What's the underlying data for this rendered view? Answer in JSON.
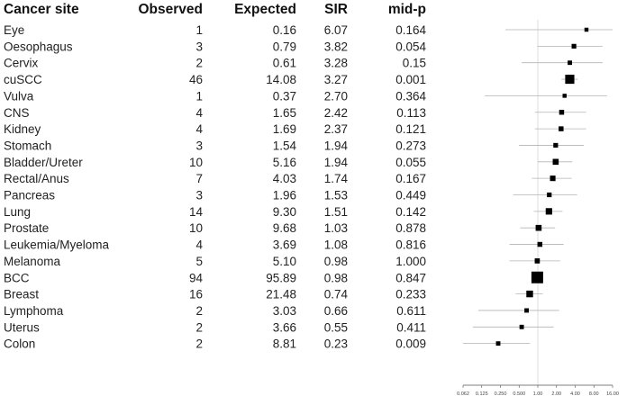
{
  "chart_data": {
    "type": "table",
    "columns": [
      "Cancer site",
      "Observed",
      "Expected",
      "SIR",
      "mid-p"
    ],
    "rows": [
      {
        "site": "Eye",
        "observed": "1",
        "expected": "0.16",
        "sir": "6.07",
        "midp": "0.164",
        "ci": [
          0.3,
          30
        ]
      },
      {
        "site": "Oesophagus",
        "observed": "3",
        "expected": "0.79",
        "sir": "3.82",
        "midp": "0.054",
        "ci": [
          0.98,
          11
        ]
      },
      {
        "site": "Cervix",
        "observed": "2",
        "expected": "0.61",
        "sir": "3.28",
        "midp": "0.15",
        "ci": [
          0.55,
          11
        ]
      },
      {
        "site": "cuSCC",
        "observed": "46",
        "expected": "14.08",
        "sir": "3.27",
        "midp": "0.001",
        "ci": [
          2.4,
          4.4
        ]
      },
      {
        "site": "Vulva",
        "observed": "1",
        "expected": "0.37",
        "sir": "2.70",
        "midp": "0.364",
        "ci": [
          0.14,
          13
        ]
      },
      {
        "site": "CNS",
        "observed": "4",
        "expected": "1.65",
        "sir": "2.42",
        "midp": "0.113",
        "ci": [
          0.9,
          6
        ]
      },
      {
        "site": "Kidney",
        "observed": "4",
        "expected": "1.69",
        "sir": "2.37",
        "midp": "0.121",
        "ci": [
          0.9,
          6
        ]
      },
      {
        "site": "Stomach",
        "observed": "3",
        "expected": "1.54",
        "sir": "1.94",
        "midp": "0.273",
        "ci": [
          0.5,
          5.5
        ]
      },
      {
        "site": "Bladder/Ureter",
        "observed": "10",
        "expected": "5.16",
        "sir": "1.94",
        "midp": "0.055",
        "ci": [
          1.0,
          3.6
        ]
      },
      {
        "site": "Rectal/Anus",
        "observed": "7",
        "expected": "4.03",
        "sir": "1.74",
        "midp": "0.167",
        "ci": [
          0.8,
          3.5
        ]
      },
      {
        "site": "Pancreas",
        "observed": "3",
        "expected": "1.96",
        "sir": "1.53",
        "midp": "0.449",
        "ci": [
          0.4,
          4.3
        ]
      },
      {
        "site": "Lung",
        "observed": "14",
        "expected": "9.30",
        "sir": "1.51",
        "midp": "0.142",
        "ci": [
          0.86,
          2.5
        ]
      },
      {
        "site": "Prostate",
        "observed": "10",
        "expected": "9.68",
        "sir": "1.03",
        "midp": "0.878",
        "ci": [
          0.52,
          1.9
        ]
      },
      {
        "site": "Leukemia/Myeloma",
        "observed": "4",
        "expected": "3.69",
        "sir": "1.08",
        "midp": "0.816",
        "ci": [
          0.35,
          2.6
        ]
      },
      {
        "site": "Melanoma",
        "observed": "5",
        "expected": "5.10",
        "sir": "0.98",
        "midp": "1.000",
        "ci": [
          0.35,
          2.3
        ]
      },
      {
        "site": "BCC",
        "observed": "94",
        "expected": "95.89",
        "sir": "0.98",
        "midp": "0.847",
        "ci": [
          0.8,
          1.2
        ]
      },
      {
        "site": "Breast",
        "observed": "16",
        "expected": "21.48",
        "sir": "0.74",
        "midp": "0.233",
        "ci": [
          0.44,
          1.2
        ]
      },
      {
        "site": "Lymphoma",
        "observed": "2",
        "expected": "3.03",
        "sir": "0.66",
        "midp": "0.611",
        "ci": [
          0.11,
          2.2
        ]
      },
      {
        "site": "Uterus",
        "observed": "2",
        "expected": "3.66",
        "sir": "0.55",
        "midp": "0.411",
        "ci": [
          0.09,
          1.8
        ]
      },
      {
        "site": "Colon",
        "observed": "2",
        "expected": "8.81",
        "sir": "0.23",
        "midp": "0.009",
        "ci": [
          0.04,
          0.75
        ]
      }
    ],
    "forest": {
      "type": "scatter",
      "x_scale": "log2",
      "xlim": [
        0.0625,
        16
      ],
      "x_ticks": [
        0.0625,
        0.125,
        0.25,
        0.5,
        1,
        2,
        4,
        8,
        16
      ],
      "x_tick_labels": [
        "0.062",
        "0.125",
        "0.250",
        "0.500",
        "1.00",
        "2.00",
        "4.00",
        "8.00",
        "16.00"
      ],
      "reference_line": 1
    }
  }
}
